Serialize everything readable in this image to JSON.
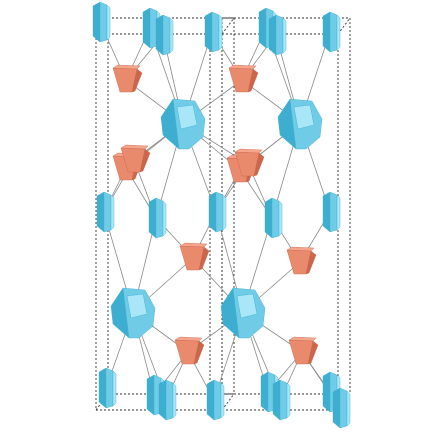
{
  "colors": {
    "background": "#ffffff",
    "cell_edge": "#333333",
    "bond": "#8a8a8a",
    "cyan_face_light": "#a9e6f7",
    "cyan_face_mid": "#6fcbe6",
    "cyan_face_dark": "#3eaed0",
    "salmon_face_light": "#f6a58c",
    "salmon_face_mid": "#e98a6d",
    "salmon_face_dark": "#c9664b"
  },
  "polyhedra": {
    "cyan_large": 4,
    "cyan_plates": 20,
    "salmon_small": 10
  }
}
